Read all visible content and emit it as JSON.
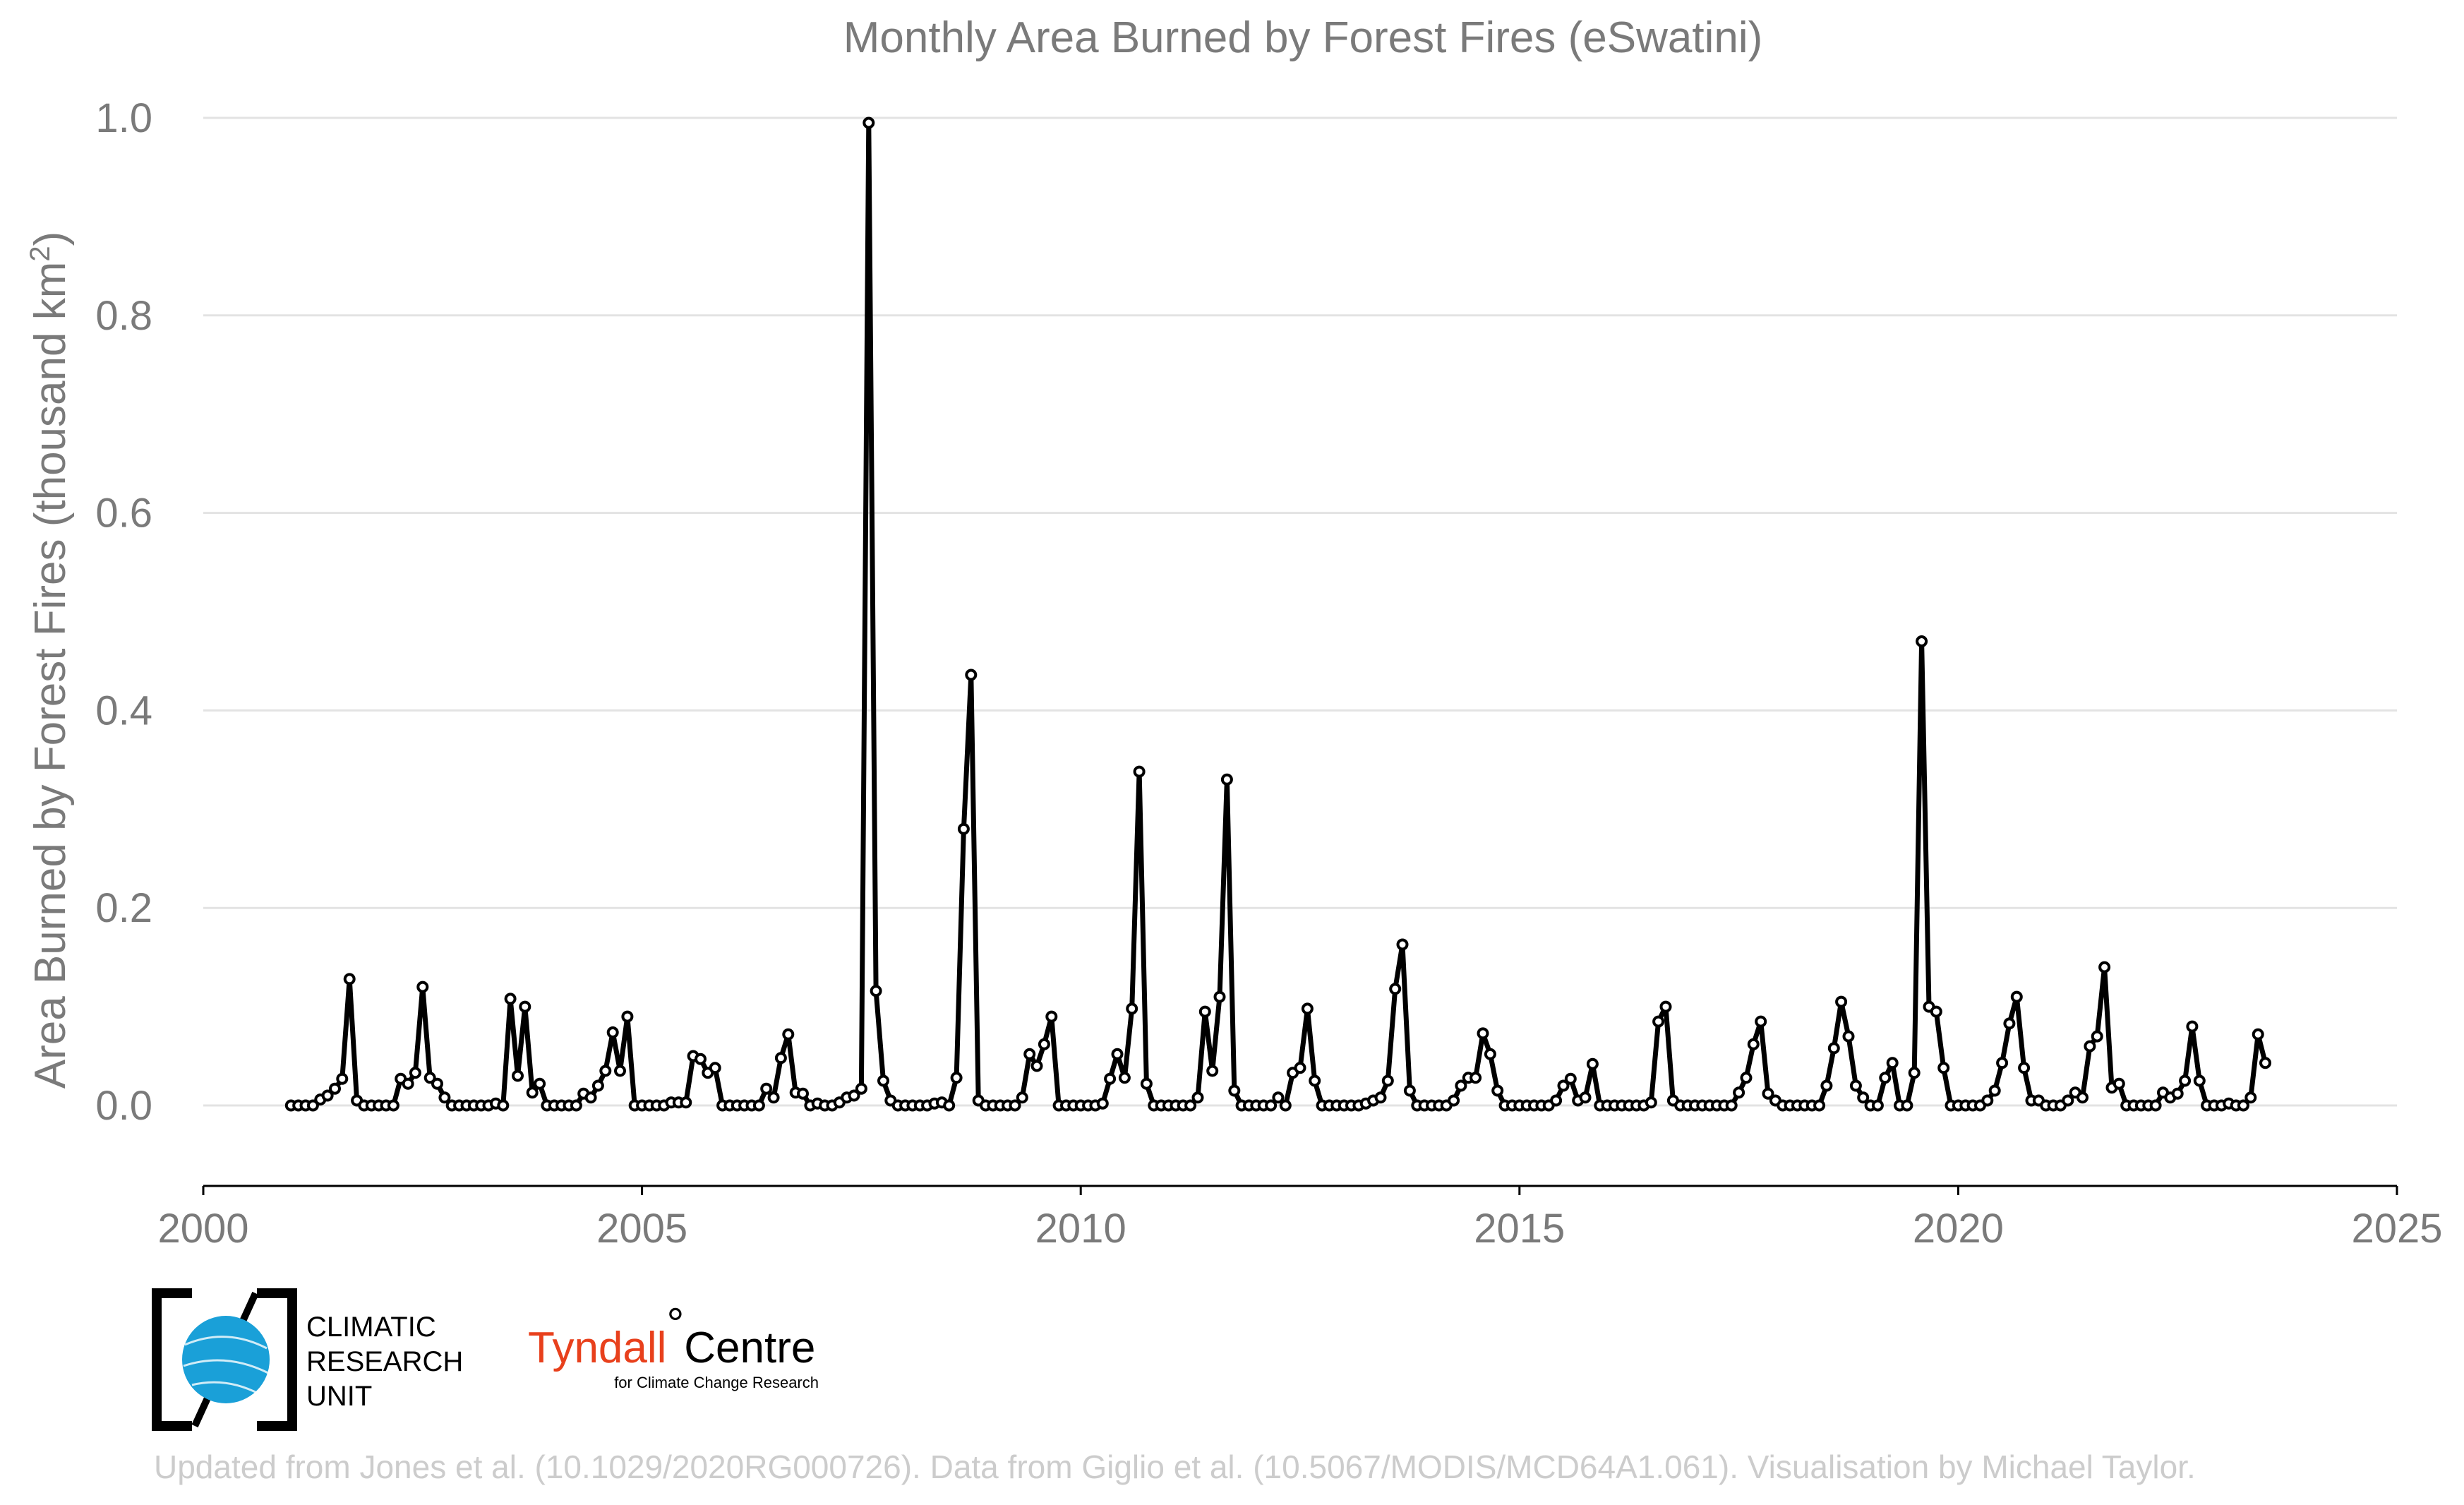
{
  "chart_data": {
    "type": "line",
    "title": "Monthly Area Burned by Forest Fires (eSwatini)",
    "ylabel": "Area Burned by Forest Fires (thousand km",
    "ylabel_sup": "2",
    "ylabel_close": ")",
    "xlabel": "",
    "xlim": [
      2000,
      2025
    ],
    "ylim": [
      -0.08,
      1.0
    ],
    "x_ticks": [
      "2000",
      "2005",
      "2010",
      "2015",
      "2020",
      "2025"
    ],
    "y_ticks": [
      "0.0",
      "0.2",
      "0.4",
      "0.6",
      "0.8",
      "1.0"
    ],
    "grid": true,
    "series_color": "#000000",
    "x_start": "2001-01",
    "frequency": "monthly",
    "values": [
      0.0,
      0.0,
      0.0,
      0.0,
      0.006,
      0.01,
      0.017,
      0.027,
      0.128,
      0.005,
      0.0,
      0.0,
      0.0,
      0.0,
      0.0,
      0.027,
      0.022,
      0.033,
      0.12,
      0.028,
      0.022,
      0.008,
      0.0,
      0.0,
      0.0,
      0.0,
      0.0,
      0.0,
      0.002,
      0.0,
      0.108,
      0.03,
      0.1,
      0.013,
      0.022,
      0.0,
      0.0,
      0.0,
      0.0,
      0.0,
      0.012,
      0.008,
      0.02,
      0.035,
      0.074,
      0.035,
      0.09,
      0.0,
      0.0,
      0.0,
      0.0,
      0.0,
      0.003,
      0.003,
      0.003,
      0.05,
      0.047,
      0.033,
      0.038,
      0.0,
      0.0,
      0.0,
      0.0,
      0.0,
      0.0,
      0.017,
      0.008,
      0.048,
      0.072,
      0.013,
      0.012,
      0.0,
      0.002,
      0.0,
      0.0,
      0.003,
      0.008,
      0.01,
      0.017,
      0.995,
      0.116,
      0.025,
      0.005,
      0.0,
      0.0,
      0.0,
      0.0,
      0.0,
      0.002,
      0.003,
      0.0,
      0.028,
      0.28,
      0.436,
      0.005,
      0.0,
      0.0,
      0.0,
      0.0,
      0.0,
      0.008,
      0.052,
      0.04,
      0.062,
      0.09,
      0.0,
      0.0,
      0.0,
      0.0,
      0.0,
      0.0,
      0.002,
      0.027,
      0.052,
      0.028,
      0.098,
      0.338,
      0.022,
      0.0,
      0.0,
      0.0,
      0.0,
      0.0,
      0.0,
      0.008,
      0.095,
      0.035,
      0.11,
      0.33,
      0.015,
      0.0,
      0.0,
      0.0,
      0.0,
      0.0,
      0.008,
      0.0,
      0.033,
      0.038,
      0.098,
      0.025,
      0.0,
      0.0,
      0.0,
      0.0,
      0.0,
      0.0,
      0.002,
      0.005,
      0.008,
      0.025,
      0.118,
      0.163,
      0.015,
      0.0,
      0.0,
      0.0,
      0.0,
      0.0,
      0.005,
      0.02,
      0.028,
      0.028,
      0.073,
      0.052,
      0.015,
      0.0,
      0.0,
      0.0,
      0.0,
      0.0,
      0.0,
      0.0,
      0.005,
      0.02,
      0.027,
      0.005,
      0.008,
      0.042,
      0.0,
      0.0,
      0.0,
      0.0,
      0.0,
      0.0,
      0.0,
      0.003,
      0.085,
      0.1,
      0.005,
      0.0,
      0.0,
      0.0,
      0.0,
      0.0,
      0.0,
      0.0,
      0.0,
      0.013,
      0.028,
      0.062,
      0.085,
      0.012,
      0.005,
      0.0,
      0.0,
      0.0,
      0.0,
      0.0,
      0.0,
      0.02,
      0.058,
      0.105,
      0.07,
      0.02,
      0.008,
      0.0,
      0.0,
      0.028,
      0.043,
      0.0,
      0.0,
      0.033,
      0.47,
      0.1,
      0.095,
      0.038,
      0.0,
      0.0,
      0.0,
      0.0,
      0.0,
      0.005,
      0.015,
      0.043,
      0.083,
      0.11,
      0.038,
      0.005,
      0.005,
      0.0,
      0.0,
      0.0,
      0.005,
      0.013,
      0.008,
      0.06,
      0.07,
      0.14,
      0.018,
      0.022,
      0.0,
      0.0,
      0.0,
      0.0,
      0.0,
      0.013,
      0.008,
      0.012,
      0.025,
      0.08,
      0.025,
      0.0,
      0.0,
      0.0,
      0.002,
      0.0,
      0.0,
      0.008,
      0.072,
      0.043
    ]
  },
  "logos": {
    "cru": {
      "line1": "CLIMATIC",
      "line2": "RESEARCH",
      "line3": "UNIT",
      "globe_color": "#1aa0d8",
      "bracket_color": "#000000"
    },
    "tyndall": {
      "main": "Tyndall",
      "degree": "°",
      "centre": "Centre",
      "sub": "for Climate Change Research",
      "main_color": "#e8401c"
    }
  },
  "credit": "Updated from Jones et al. (10.1029/2020RG000726). Data from Giglio et al. (10.5067/MODIS/MCD64A1.061). Visualisation by Michael Taylor."
}
